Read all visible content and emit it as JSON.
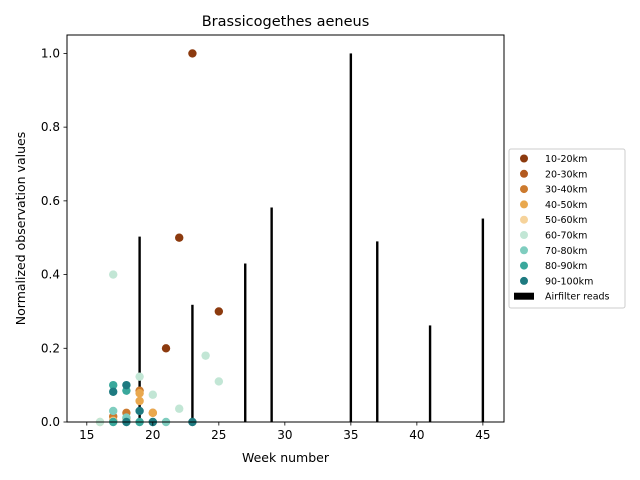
{
  "chart_data": {
    "type": "scatter",
    "title": "Brassicogethes aeneus",
    "xlabel": "Week number",
    "ylabel": "Normalized observation values",
    "xlim": [
      13.5,
      46.6
    ],
    "ylim": [
      0,
      1.05
    ],
    "xticks": [
      15,
      20,
      25,
      30,
      35,
      40,
      45
    ],
    "yticks": [
      0.0,
      0.2,
      0.4,
      0.6,
      0.8,
      1.0
    ],
    "grid": false,
    "legend_position": "right",
    "series": [
      {
        "name": "10-20km",
        "color": "#8c3a0e",
        "points": [
          [
            23,
            1.0
          ],
          [
            22,
            0.5
          ],
          [
            25,
            0.3
          ],
          [
            21,
            0.2
          ]
        ]
      },
      {
        "name": "20-30km",
        "color": "#b35a1f",
        "points": []
      },
      {
        "name": "30-40km",
        "color": "#cc7a2e",
        "points": [
          [
            19,
            0.085
          ],
          [
            17,
            0.015
          ],
          [
            18,
            0.025
          ],
          [
            20,
            0.025
          ]
        ]
      },
      {
        "name": "40-50km",
        "color": "#e9a84e",
        "points": [
          [
            19,
            0.057
          ],
          [
            19,
            0.078
          ],
          [
            20,
            0.025
          ],
          [
            17,
            0.004
          ],
          [
            18,
            0.01
          ]
        ]
      },
      {
        "name": "50-60km",
        "color": "#f6d39b",
        "points": [
          [
            16,
            0.0
          ],
          [
            17,
            0.002
          ]
        ]
      },
      {
        "name": "60-70km",
        "color": "#c2e6d5",
        "points": [
          [
            17,
            0.4
          ],
          [
            24,
            0.18
          ],
          [
            19,
            0.123
          ],
          [
            25,
            0.11
          ],
          [
            20,
            0.074
          ],
          [
            22,
            0.036
          ],
          [
            16,
            0.0
          ]
        ]
      },
      {
        "name": "70-80km",
        "color": "#7fcdbf",
        "points": [
          [
            17,
            0.03
          ],
          [
            18,
            0.012
          ],
          [
            21,
            0.0
          ],
          [
            20,
            0.0
          ]
        ]
      },
      {
        "name": "80-90km",
        "color": "#3aa89c",
        "points": [
          [
            17,
            0.1
          ],
          [
            18,
            0.085
          ],
          [
            19,
            0.0
          ],
          [
            17,
            0.0
          ]
        ]
      },
      {
        "name": "90-100km",
        "color": "#1e7a80",
        "points": [
          [
            17,
            0.082
          ],
          [
            18,
            0.1
          ],
          [
            19,
            0.03
          ],
          [
            23,
            0.0
          ],
          [
            20,
            0.0
          ],
          [
            18,
            0.0
          ]
        ]
      }
    ],
    "bars": {
      "name": "Airfilter reads",
      "color": "#000000",
      "x": [
        19,
        23,
        27,
        29,
        35,
        37,
        41,
        45
      ],
      "values": [
        0.503,
        0.318,
        0.43,
        0.582,
        1.0,
        0.49,
        0.262,
        0.552
      ]
    }
  }
}
